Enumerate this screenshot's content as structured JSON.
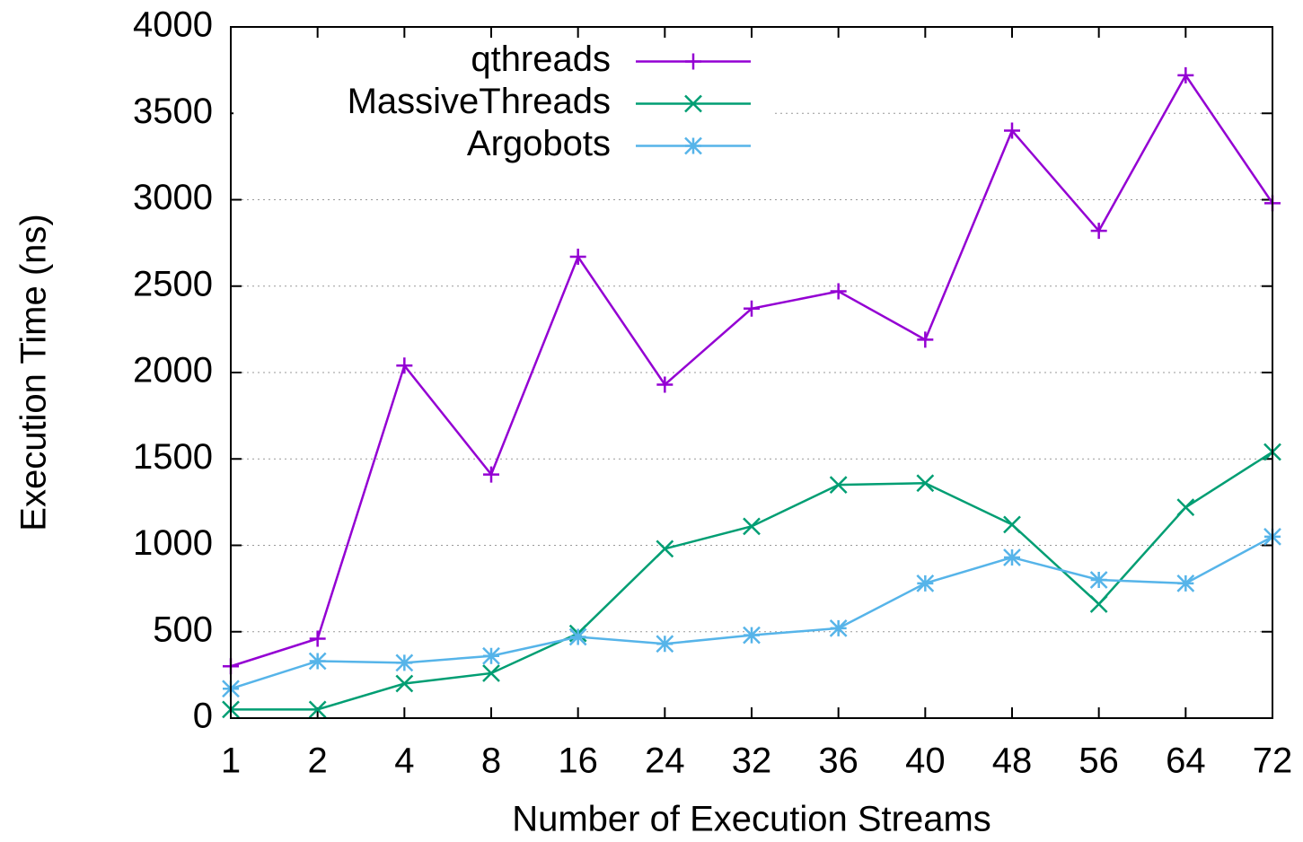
{
  "chart_data": {
    "type": "line",
    "x_label": "Number of Execution Streams",
    "y_label": "Execution Time (ns)",
    "categories": [
      "1",
      "2",
      "4",
      "8",
      "16",
      "24",
      "32",
      "36",
      "40",
      "48",
      "56",
      "64",
      "72"
    ],
    "series": [
      {
        "name": "qthreads",
        "color": "#9400d3",
        "marker": "plus",
        "values": [
          300,
          460,
          2040,
          1410,
          2670,
          1930,
          2370,
          2470,
          2190,
          3400,
          2820,
          3720,
          2980
        ]
      },
      {
        "name": "MassiveThreads",
        "color": "#009e73",
        "marker": "cross",
        "values": [
          50,
          50,
          200,
          260,
          490,
          980,
          1110,
          1350,
          1360,
          1120,
          660,
          1220,
          1540
        ]
      },
      {
        "name": "Argobots",
        "color": "#56b4e9",
        "marker": "star",
        "values": [
          170,
          330,
          320,
          360,
          470,
          430,
          480,
          520,
          780,
          930,
          800,
          780,
          1050
        ]
      }
    ],
    "ylim": [
      0,
      4000
    ],
    "yticks": [
      0,
      500,
      1000,
      1500,
      2000,
      2500,
      3000,
      3500,
      4000
    ],
    "grid": true,
    "legend": "top left"
  }
}
